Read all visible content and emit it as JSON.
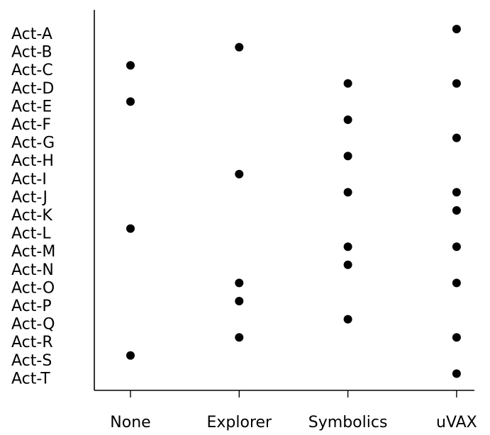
{
  "chart_data": {
    "type": "scatter",
    "title": "",
    "xlabel": "",
    "ylabel": "",
    "x_categories": [
      "None",
      "Explorer",
      "Symbolics",
      "uVAX"
    ],
    "y_categories": [
      "Act-A",
      "Act-B",
      "Act-C",
      "Act-D",
      "Act-E",
      "Act-F",
      "Act-G",
      "Act-H",
      "Act-I",
      "Act-J",
      "Act-K",
      "Act-L",
      "Act-M",
      "Act-N",
      "Act-O",
      "Act-P",
      "Act-Q",
      "Act-R",
      "Act-S",
      "Act-T"
    ],
    "points": [
      {
        "y": "Act-A",
        "x": "uVAX"
      },
      {
        "y": "Act-B",
        "x": "Explorer"
      },
      {
        "y": "Act-C",
        "x": "None"
      },
      {
        "y": "Act-D",
        "x": "Symbolics"
      },
      {
        "y": "Act-D",
        "x": "uVAX"
      },
      {
        "y": "Act-E",
        "x": "None"
      },
      {
        "y": "Act-F",
        "x": "Symbolics"
      },
      {
        "y": "Act-G",
        "x": "uVAX"
      },
      {
        "y": "Act-H",
        "x": "Symbolics"
      },
      {
        "y": "Act-I",
        "x": "Explorer"
      },
      {
        "y": "Act-J",
        "x": "Symbolics"
      },
      {
        "y": "Act-J",
        "x": "uVAX"
      },
      {
        "y": "Act-K",
        "x": "uVAX"
      },
      {
        "y": "Act-L",
        "x": "None"
      },
      {
        "y": "Act-M",
        "x": "Symbolics"
      },
      {
        "y": "Act-M",
        "x": "uVAX"
      },
      {
        "y": "Act-N",
        "x": "Symbolics"
      },
      {
        "y": "Act-O",
        "x": "Explorer"
      },
      {
        "y": "Act-O",
        "x": "uVAX"
      },
      {
        "y": "Act-P",
        "x": "Explorer"
      },
      {
        "y": "Act-Q",
        "x": "Symbolics"
      },
      {
        "y": "Act-R",
        "x": "Explorer"
      },
      {
        "y": "Act-R",
        "x": "uVAX"
      },
      {
        "y": "Act-S",
        "x": "None"
      },
      {
        "y": "Act-T",
        "x": "uVAX"
      }
    ],
    "grid": false,
    "legend": "none",
    "marker_color": "#000000"
  }
}
